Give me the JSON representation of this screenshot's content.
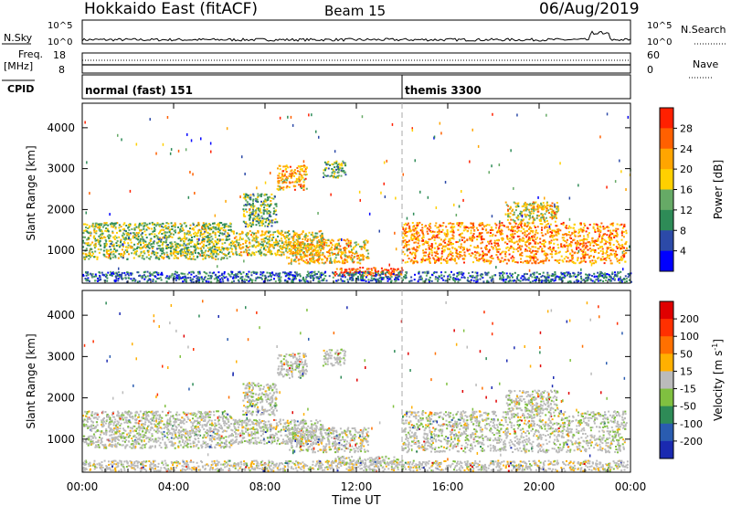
{
  "header": {
    "title": "Hokkaido East (fitACF)",
    "beam": "Beam 15",
    "date": "06/Aug/2019"
  },
  "top_panels": {
    "nsky_label": "N.Sky",
    "nsearch_label": "N.Search",
    "noise_ticks": [
      "10^5",
      "10^0"
    ],
    "freq_label_line1": "Freq.",
    "freq_label_line2": "[MHz]",
    "freq_ticks": [
      "18",
      "8"
    ],
    "nave_label": "Nave",
    "nave_ticks": [
      "60",
      "0"
    ],
    "cpid_label": "CPID",
    "cpid_segments": [
      {
        "label": "normal (fast) 151",
        "start_hour": 0
      },
      {
        "label": "themis 3300",
        "start_hour": 14
      }
    ]
  },
  "chart_data": [
    {
      "type": "heatmap",
      "name": "power",
      "xlabel": "Time UT",
      "ylabel": "Slant Range [km]",
      "x_ticks": [
        "00:00",
        "04:00",
        "08:00",
        "12:00",
        "16:00",
        "20:00",
        "00:00"
      ],
      "xlim_hours": [
        0,
        24
      ],
      "y_ticks": [
        1000,
        2000,
        3000,
        4000
      ],
      "ylim": [
        200,
        4600
      ],
      "colorbar_label": "Power [dB]",
      "colorbar_ticks": [
        4,
        8,
        12,
        16,
        20,
        24,
        28
      ],
      "colorbar_colors": [
        "#0000ff",
        "#2c4aa8",
        "#2e8b57",
        "#66aa66",
        "#ffd000",
        "#ffa500",
        "#ff6000",
        "#ff2000"
      ],
      "dashed_line_hour": 14,
      "echo_regions": [
        {
          "t0": 0,
          "t1": 6.5,
          "r0": 800,
          "r1": 1700,
          "level": 0.45
        },
        {
          "t0": 6.5,
          "t1": 10.5,
          "r0": 900,
          "r1": 1500,
          "level": 0.55
        },
        {
          "t0": 9.0,
          "t1": 12.5,
          "r0": 700,
          "r1": 1300,
          "level": 0.65
        },
        {
          "t0": 7.0,
          "t1": 8.5,
          "r0": 1600,
          "r1": 2400,
          "level": 0.4
        },
        {
          "t0": 8.5,
          "t1": 9.8,
          "r0": 2500,
          "r1": 3100,
          "level": 0.7
        },
        {
          "t0": 10.5,
          "t1": 11.5,
          "r0": 2800,
          "r1": 3200,
          "level": 0.4
        },
        {
          "t0": 11.0,
          "t1": 14.0,
          "r0": 400,
          "r1": 600,
          "level": 0.9
        },
        {
          "t0": 14.0,
          "t1": 23.8,
          "r0": 700,
          "r1": 1700,
          "level": 0.75
        },
        {
          "t0": 18.5,
          "t1": 20.8,
          "r0": 1700,
          "r1": 2200,
          "level": 0.6
        },
        {
          "t0": 0,
          "t1": 24,
          "r0": 250,
          "r1": 500,
          "level": 0.2
        }
      ]
    },
    {
      "type": "heatmap",
      "name": "velocity",
      "xlabel": "Time UT",
      "ylabel": "Slant Range [km]",
      "x_ticks": [
        "00:00",
        "04:00",
        "08:00",
        "12:00",
        "16:00",
        "20:00",
        "00:00"
      ],
      "xlim_hours": [
        0,
        24
      ],
      "y_ticks": [
        1000,
        2000,
        3000,
        4000
      ],
      "ylim": [
        200,
        4600
      ],
      "colorbar_label": "Velocity [m s",
      "colorbar_label_sup": "-1",
      "colorbar_label_end": "]",
      "colorbar_ticks": [
        200,
        100,
        50,
        15,
        -15,
        -50,
        -100,
        -200
      ],
      "colorbar_colors": [
        "#1a2ab0",
        "#2a5cb0",
        "#2e8b57",
        "#80c040",
        "#bbbbbb",
        "#ffb000",
        "#ff7000",
        "#ff3000",
        "#e00000"
      ],
      "dashed_line_hour": 14,
      "echo_regions": [
        {
          "t0": 0,
          "t1": 6.5,
          "r0": 800,
          "r1": 1700,
          "level": 0.5
        },
        {
          "t0": 6.5,
          "t1": 10.5,
          "r0": 900,
          "r1": 1500,
          "level": 0.5
        },
        {
          "t0": 9.0,
          "t1": 12.5,
          "r0": 700,
          "r1": 1300,
          "level": 0.45
        },
        {
          "t0": 7.0,
          "t1": 8.5,
          "r0": 1600,
          "r1": 2400,
          "level": 0.5
        },
        {
          "t0": 8.5,
          "t1": 9.8,
          "r0": 2500,
          "r1": 3100,
          "level": 0.5
        },
        {
          "t0": 10.5,
          "t1": 11.5,
          "r0": 2800,
          "r1": 3200,
          "level": 0.5
        },
        {
          "t0": 11.0,
          "t1": 14.0,
          "r0": 400,
          "r1": 600,
          "level": 0.3
        },
        {
          "t0": 14.0,
          "t1": 23.8,
          "r0": 700,
          "r1": 1700,
          "level": 0.5
        },
        {
          "t0": 18.5,
          "t1": 20.8,
          "r0": 1700,
          "r1": 2200,
          "level": 0.45
        },
        {
          "t0": 0,
          "t1": 24,
          "r0": 250,
          "r1": 500,
          "level": 0.6
        }
      ]
    }
  ]
}
